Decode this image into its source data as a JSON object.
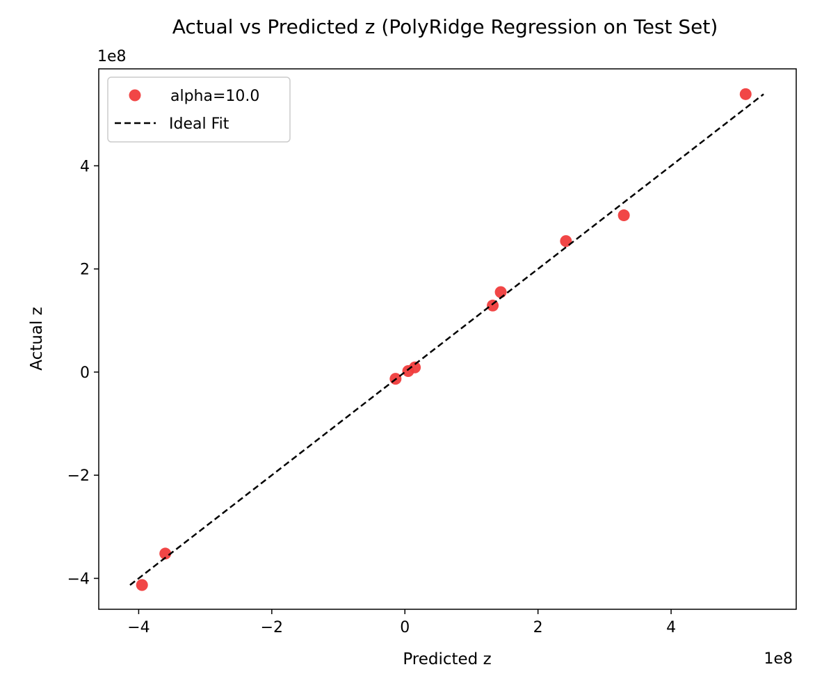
{
  "chart_data": {
    "type": "scatter",
    "title": "Actual vs Predicted z (PolyRidge Regression on Test Set)",
    "xlabel": "Predicted z",
    "ylabel": "Actual z",
    "x_offset_text": "1e8",
    "y_offset_text": "1e8",
    "xlim": [
      -460000000.0,
      588000000.0
    ],
    "ylim": [
      -460000000.0,
      588000000.0
    ],
    "x_ticks": [
      -400000000.0,
      -200000000.0,
      0,
      200000000.0,
      400000000.0
    ],
    "x_tick_labels": [
      "−4",
      "−2",
      "0",
      "2",
      "4"
    ],
    "y_ticks": [
      -400000000.0,
      -200000000.0,
      0,
      200000000.0,
      400000000.0
    ],
    "y_tick_labels": [
      "−4",
      "−2",
      "0",
      "2",
      "4"
    ],
    "grid": false,
    "legend_position": "top-left",
    "series": [
      {
        "name": "alpha=10.0",
        "kind": "scatter",
        "color": "#f03c3c",
        "points": [
          {
            "x": -395000000.0,
            "y": -413000000.0
          },
          {
            "x": -360000000.0,
            "y": -352000000.0
          },
          {
            "x": -14000000.0,
            "y": -13000000.0
          },
          {
            "x": 5000000.0,
            "y": 2000000.0
          },
          {
            "x": 15000000.0,
            "y": 9000000.0
          },
          {
            "x": 132000000.0,
            "y": 129000000.0
          },
          {
            "x": 144000000.0,
            "y": 155000000.0
          },
          {
            "x": 242000000.0,
            "y": 254000000.0
          },
          {
            "x": 329000000.0,
            "y": 304000000.0
          },
          {
            "x": 512000000.0,
            "y": 539000000.0
          }
        ]
      },
      {
        "name": "Ideal Fit",
        "kind": "line",
        "style": "dashed",
        "color": "#000000",
        "points": [
          {
            "x": -413000000.0,
            "y": -413000000.0
          },
          {
            "x": 539000000.0,
            "y": 539000000.0
          }
        ]
      }
    ]
  }
}
